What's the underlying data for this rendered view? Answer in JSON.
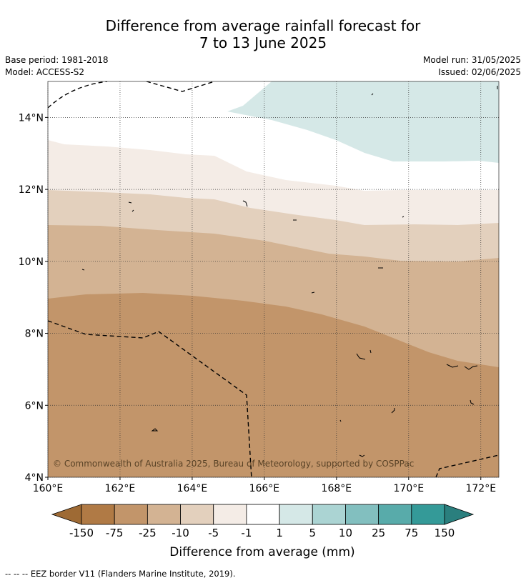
{
  "header": {
    "title_line1": "Difference from average rainfall forecast for",
    "title_line2": "7 to 13 June 2025",
    "base_period": "Base period: 1981-2018",
    "model": "Model: ACCESS-S2",
    "model_run": "Model run: 31/05/2025",
    "issued": "Issued: 02/06/2025"
  },
  "map": {
    "lon_range": [
      160,
      172.5
    ],
    "lat_range": [
      4,
      15
    ],
    "lat_ticks": [
      {
        "value": 14,
        "label": "14°N"
      },
      {
        "value": 12,
        "label": "12°N"
      },
      {
        "value": 10,
        "label": "10°N"
      },
      {
        "value": 8,
        "label": "8°N"
      },
      {
        "value": 6,
        "label": "6°N"
      },
      {
        "value": 4,
        "label": "4°N"
      }
    ],
    "lon_ticks": [
      {
        "value": 160,
        "label": "160°E"
      },
      {
        "value": 162,
        "label": "162°E"
      },
      {
        "value": 164,
        "label": "164°E"
      },
      {
        "value": 166,
        "label": "166°E"
      },
      {
        "value": 168,
        "label": "168°E"
      },
      {
        "value": 170,
        "label": "170°E"
      },
      {
        "value": 172,
        "label": "172°E"
      }
    ],
    "gridlines": true,
    "copyright": "© Commonwealth of Australia 2025, Bureau of Meteorology, supported by COSPPac"
  },
  "colorbar": {
    "title": "Difference from average (mm)",
    "tick_labels": [
      "-150",
      "-75",
      "-25",
      "-10",
      "-5",
      "-1",
      "1",
      "5",
      "10",
      "25",
      "75",
      "150"
    ],
    "low_extend_color": "#9e6a34",
    "high_extend_color": "#2a7f7e",
    "bin_colors": [
      "#b07a45",
      "#c2956a",
      "#d3b393",
      "#e3d0bd",
      "#f4ece6",
      "#ffffff",
      "#d5e8e7",
      "#abd4d3",
      "#82bfbf",
      "#58abaa",
      "#349a98"
    ]
  },
  "footer": {
    "legend_text": "--  --  -- EEZ border V11 (Flanders Marine Institute, 2019)."
  }
}
